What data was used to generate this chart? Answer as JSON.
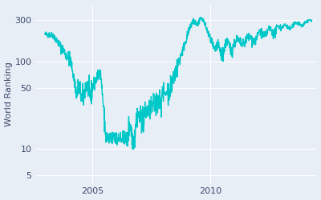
{
  "ylabel": "World Ranking",
  "line_color": "#00C8C8",
  "background_color": "#E8EEF6",
  "fig_background": "#E8EEF6",
  "yticks": [
    5,
    10,
    50,
    100,
    300
  ],
  "ylim": [
    4,
    450
  ],
  "xlim_start": 2002.6,
  "xlim_end": 2014.5,
  "xticks": [
    2005,
    2010
  ],
  "linewidth": 1.0
}
